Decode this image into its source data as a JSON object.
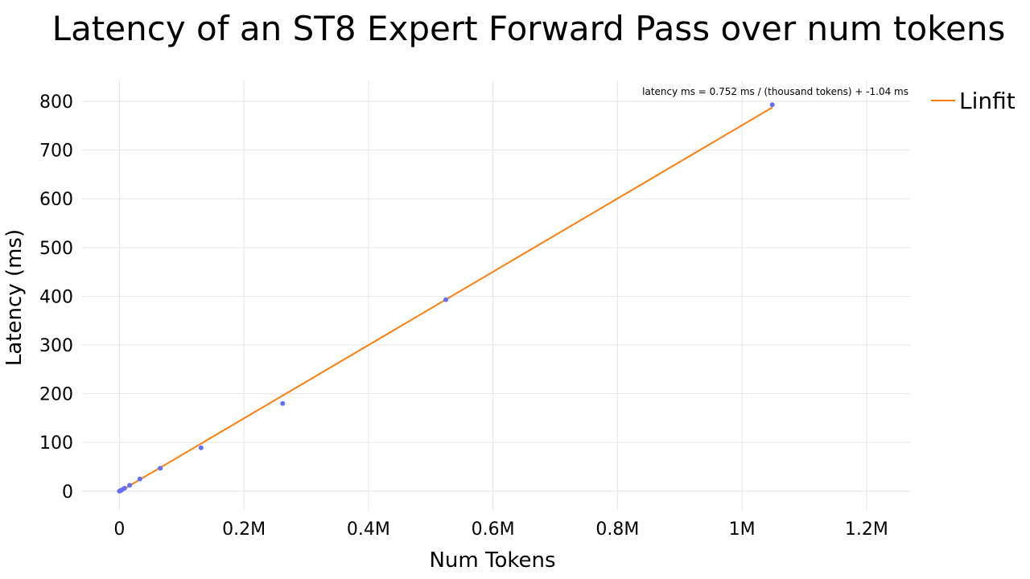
{
  "chart_data": {
    "type": "scatter",
    "title": "Latency of an ST8 Expert Forward Pass over num tokens",
    "xlabel": "Num Tokens",
    "ylabel": "Latency (ms)",
    "xlim": [
      -60000,
      1270000
    ],
    "ylim": [
      -40,
      843
    ],
    "x_ticks": [
      0,
      200000,
      400000,
      600000,
      800000,
      1000000,
      1200000
    ],
    "x_tick_labels": [
      "0",
      "0.2M",
      "0.4M",
      "0.6M",
      "0.8M",
      "1M",
      "1.2M"
    ],
    "y_ticks": [
      0,
      100,
      200,
      300,
      400,
      500,
      600,
      700,
      800
    ],
    "y_tick_labels": [
      "0",
      "100",
      "200",
      "300",
      "400",
      "500",
      "600",
      "700",
      "800"
    ],
    "grid": true,
    "legend": {
      "position": "top-right",
      "entries": [
        "Linfit"
      ]
    },
    "series": [
      {
        "type": "scatter",
        "color": "#636efa",
        "points": [
          {
            "x": 0,
            "y": 0
          },
          {
            "x": 1024,
            "y": 0.5
          },
          {
            "x": 2048,
            "y": 1.5
          },
          {
            "x": 4096,
            "y": 2.8
          },
          {
            "x": 8192,
            "y": 6
          },
          {
            "x": 16384,
            "y": 12
          },
          {
            "x": 32768,
            "y": 25
          },
          {
            "x": 65536,
            "y": 47
          },
          {
            "x": 131072,
            "y": 89
          },
          {
            "x": 262144,
            "y": 180
          },
          {
            "x": 524288,
            "y": 393
          },
          {
            "x": 1048576,
            "y": 793
          }
        ]
      },
      {
        "name": "Linfit",
        "type": "line",
        "color": "#ff7f0e",
        "x": [
          0,
          1048576
        ],
        "y": [
          -1.04,
          787.5
        ]
      }
    ],
    "annotation": "latency ms = 0.752 ms / (thousand tokens) + -1.04 ms"
  }
}
